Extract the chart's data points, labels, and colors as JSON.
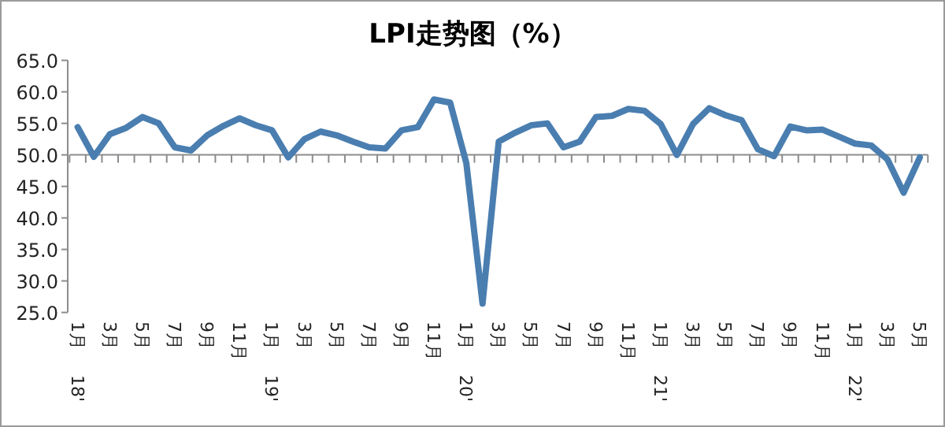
{
  "chart_data": {
    "type": "line",
    "title": "LPI走势图（%）",
    "categories": [
      "1月 18'",
      null,
      "3月",
      null,
      "5月",
      null,
      "7月",
      null,
      "9月",
      null,
      "11月",
      null,
      "1月 19'",
      null,
      "3月",
      null,
      "5月",
      null,
      "7月",
      null,
      "9月",
      null,
      "11月",
      null,
      "1月 20'",
      null,
      "3月",
      null,
      "5月",
      null,
      "7月",
      null,
      "9月",
      null,
      "11月",
      null,
      "1月 21'",
      null,
      "3月",
      null,
      "5月",
      null,
      "7月",
      null,
      "9月",
      null,
      "11月",
      null,
      "1月 22'",
      null,
      "3月",
      null,
      "5月"
    ],
    "values": [
      54.4,
      49.7,
      53.3,
      54.3,
      56.0,
      55.0,
      51.2,
      50.7,
      53.1,
      54.6,
      55.8,
      54.7,
      53.9,
      49.6,
      52.5,
      53.7,
      53.1,
      52.1,
      51.2,
      51.0,
      53.9,
      54.4,
      58.8,
      58.3,
      48.7,
      26.4,
      52.1,
      53.5,
      54.7,
      55.0,
      51.2,
      52.1,
      56.0,
      56.2,
      57.3,
      57.0,
      54.9,
      50.0,
      54.9,
      57.4,
      56.3,
      55.5,
      50.9,
      49.8,
      54.5,
      53.9,
      54.0,
      52.9,
      51.8,
      51.5,
      49.3,
      44.0,
      49.6
    ],
    "color": "#4a7eb0",
    "ylim": [
      25,
      65
    ],
    "yticks": [
      {
        "value": 25,
        "label": "25.0"
      },
      {
        "value": 30,
        "label": "30.0"
      },
      {
        "value": 35,
        "label": "35.0"
      },
      {
        "value": 40,
        "label": "40.0"
      },
      {
        "value": 45,
        "label": "45.0"
      },
      {
        "value": 50,
        "label": "50.0"
      },
      {
        "value": 55,
        "label": "55.0"
      },
      {
        "value": 60,
        "label": "60.0"
      },
      {
        "value": 65,
        "label": "65.0"
      }
    ],
    "marker": "none"
  }
}
